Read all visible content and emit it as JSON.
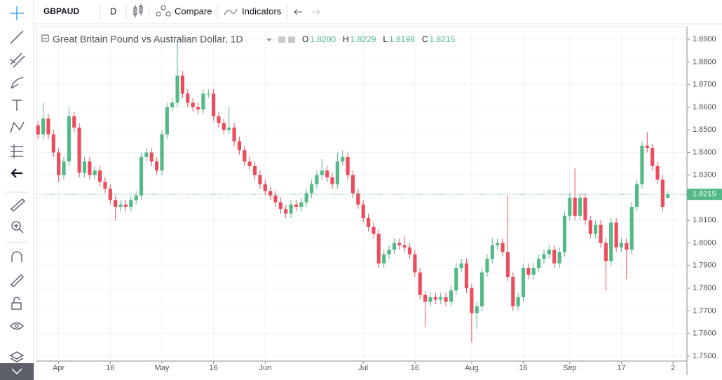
{
  "toolbar": {
    "symbol": "GBPAUD",
    "interval": "D",
    "compare": "Compare",
    "indicators": "Indicators"
  },
  "legend": {
    "title": "Great Britain Pound vs Australian Dollar, 1D",
    "items": [
      {
        "key": "O",
        "value": "1.8200"
      },
      {
        "key": "H",
        "value": "1.8229"
      },
      {
        "key": "L",
        "value": "1.8198"
      },
      {
        "key": "C",
        "value": "1.8215"
      }
    ]
  },
  "chart_data": {
    "type": "candlestick",
    "up_color": "#53b987",
    "down_color": "#eb4d5c",
    "grid": true,
    "open": [
      1.852,
      1.848,
      1.855,
      1.848,
      1.84,
      1.83,
      1.836,
      1.856,
      1.851,
      1.831,
      1.836,
      1.83,
      1.832,
      1.827,
      1.824,
      1.819,
      1.816,
      1.817,
      1.816,
      1.819,
      1.821,
      1.838,
      1.84,
      1.836,
      1.832,
      1.848,
      1.86,
      1.862,
      1.874,
      1.866,
      1.862,
      1.86,
      1.859,
      1.866,
      1.866,
      1.856,
      1.853,
      1.85,
      1.851,
      1.845,
      1.841,
      1.836,
      1.834,
      1.83,
      1.826,
      1.823,
      1.821,
      1.818,
      1.815,
      1.813,
      1.817,
      1.816,
      1.818,
      1.822,
      1.826,
      1.83,
      1.832,
      1.829,
      1.826,
      1.836,
      1.838,
      1.83,
      1.822,
      1.817,
      1.811,
      1.807,
      1.804,
      1.791,
      1.795,
      1.797,
      1.8,
      1.799,
      1.798,
      1.795,
      1.787,
      1.777,
      1.774,
      1.776,
      1.775,
      1.776,
      1.774,
      1.779,
      1.789,
      1.791,
      1.78,
      1.769,
      1.772,
      1.787,
      1.793,
      1.799,
      1.8,
      1.796,
      1.785,
      1.772,
      1.776,
      1.789,
      1.786,
      1.789,
      1.793,
      1.795,
      1.797,
      1.791,
      1.796,
      1.812,
      1.82,
      1.812,
      1.82,
      1.81,
      1.804,
      1.808,
      1.8,
      1.792,
      1.809,
      1.798,
      1.8,
      1.797,
      1.816,
      1.826,
      1.843,
      1.842,
      1.834,
      1.828,
      1.82
    ],
    "high": [
      1.854,
      1.862,
      1.857,
      1.85,
      1.842,
      1.838,
      1.86,
      1.858,
      1.853,
      1.838,
      1.838,
      1.834,
      1.834,
      1.829,
      1.826,
      1.821,
      1.819,
      1.819,
      1.821,
      1.823,
      1.84,
      1.842,
      1.842,
      1.838,
      1.85,
      1.862,
      1.864,
      1.889,
      1.876,
      1.868,
      1.864,
      1.862,
      1.868,
      1.868,
      1.868,
      1.858,
      1.855,
      1.86,
      1.853,
      1.847,
      1.843,
      1.838,
      1.836,
      1.832,
      1.828,
      1.825,
      1.823,
      1.82,
      1.817,
      1.819,
      1.819,
      1.82,
      1.824,
      1.828,
      1.832,
      1.837,
      1.834,
      1.831,
      1.84,
      1.841,
      1.84,
      1.832,
      1.824,
      1.819,
      1.813,
      1.809,
      1.806,
      1.797,
      1.799,
      1.802,
      1.802,
      1.803,
      1.8,
      1.797,
      1.789,
      1.779,
      1.778,
      1.778,
      1.778,
      1.778,
      1.781,
      1.791,
      1.793,
      1.793,
      1.782,
      1.774,
      1.789,
      1.795,
      1.802,
      1.802,
      1.802,
      1.821,
      1.787,
      1.778,
      1.791,
      1.791,
      1.791,
      1.795,
      1.797,
      1.799,
      1.799,
      1.798,
      1.814,
      1.822,
      1.833,
      1.822,
      1.822,
      1.812,
      1.81,
      1.81,
      1.802,
      1.811,
      1.811,
      1.802,
      1.802,
      1.818,
      1.828,
      1.845,
      1.849,
      1.844,
      1.836,
      1.83,
      1.8229
    ],
    "low": [
      1.846,
      1.846,
      1.846,
      1.838,
      1.827,
      1.828,
      1.834,
      1.849,
      1.829,
      1.829,
      1.828,
      1.828,
      1.825,
      1.822,
      1.817,
      1.81,
      1.814,
      1.814,
      1.814,
      1.817,
      1.819,
      1.836,
      1.834,
      1.83,
      1.83,
      1.846,
      1.858,
      1.86,
      1.864,
      1.86,
      1.858,
      1.857,
      1.857,
      1.864,
      1.854,
      1.851,
      1.848,
      1.848,
      1.843,
      1.839,
      1.834,
      1.832,
      1.828,
      1.824,
      1.821,
      1.819,
      1.816,
      1.813,
      1.811,
      1.811,
      1.814,
      1.814,
      1.816,
      1.82,
      1.824,
      1.828,
      1.827,
      1.824,
      1.824,
      1.834,
      1.828,
      1.82,
      1.815,
      1.809,
      1.805,
      1.802,
      1.789,
      1.789,
      1.793,
      1.795,
      1.797,
      1.796,
      1.793,
      1.785,
      1.775,
      1.763,
      1.772,
      1.773,
      1.773,
      1.772,
      1.772,
      1.777,
      1.787,
      1.778,
      1.756,
      1.762,
      1.77,
      1.785,
      1.791,
      1.797,
      1.794,
      1.783,
      1.77,
      1.77,
      1.774,
      1.784,
      1.784,
      1.787,
      1.791,
      1.793,
      1.789,
      1.789,
      1.794,
      1.81,
      1.81,
      1.81,
      1.808,
      1.802,
      1.802,
      1.798,
      1.779,
      1.79,
      1.796,
      1.796,
      1.784,
      1.795,
      1.814,
      1.824,
      1.84,
      1.832,
      1.826,
      1.814,
      1.8198
    ],
    "close": [
      1.848,
      1.855,
      1.848,
      1.84,
      1.83,
      1.836,
      1.856,
      1.851,
      1.831,
      1.836,
      1.83,
      1.832,
      1.827,
      1.824,
      1.819,
      1.816,
      1.817,
      1.816,
      1.819,
      1.821,
      1.838,
      1.84,
      1.836,
      1.832,
      1.848,
      1.86,
      1.862,
      1.874,
      1.866,
      1.862,
      1.86,
      1.859,
      1.866,
      1.866,
      1.856,
      1.853,
      1.85,
      1.851,
      1.845,
      1.841,
      1.836,
      1.834,
      1.83,
      1.826,
      1.823,
      1.821,
      1.818,
      1.815,
      1.813,
      1.817,
      1.816,
      1.818,
      1.822,
      1.826,
      1.83,
      1.832,
      1.829,
      1.826,
      1.836,
      1.838,
      1.83,
      1.822,
      1.817,
      1.811,
      1.807,
      1.804,
      1.791,
      1.795,
      1.797,
      1.8,
      1.799,
      1.798,
      1.795,
      1.787,
      1.777,
      1.774,
      1.776,
      1.775,
      1.776,
      1.774,
      1.779,
      1.789,
      1.791,
      1.78,
      1.769,
      1.772,
      1.787,
      1.793,
      1.799,
      1.8,
      1.796,
      1.785,
      1.772,
      1.776,
      1.789,
      1.786,
      1.789,
      1.793,
      1.795,
      1.797,
      1.791,
      1.796,
      1.812,
      1.82,
      1.812,
      1.82,
      1.81,
      1.804,
      1.808,
      1.8,
      1.792,
      1.809,
      1.798,
      1.8,
      1.797,
      1.816,
      1.826,
      1.843,
      1.842,
      1.834,
      1.828,
      1.816,
      1.8215
    ],
    "ylim": [
      1.7478,
      1.895
    ],
    "yticks": [
      {
        "value": 1.75,
        "label": "1.7500"
      },
      {
        "value": 1.76,
        "label": "1.7600"
      },
      {
        "value": 1.77,
        "label": "1.7700"
      },
      {
        "value": 1.78,
        "label": "1.7800"
      },
      {
        "value": 1.79,
        "label": "1.7900"
      },
      {
        "value": 1.8,
        "label": "1.8000"
      },
      {
        "value": 1.81,
        "label": "1.8100"
      },
      {
        "value": 1.82,
        "label": "1.8200"
      },
      {
        "value": 1.83,
        "label": "1.8300"
      },
      {
        "value": 1.84,
        "label": "1.8400"
      },
      {
        "value": 1.85,
        "label": "1.8500"
      },
      {
        "value": 1.86,
        "label": "1.8600"
      },
      {
        "value": 1.87,
        "label": "1.8700"
      },
      {
        "value": 1.88,
        "label": "1.8800"
      },
      {
        "value": 1.89,
        "label": "1.8900"
      }
    ],
    "xlim": [
      -0.3,
      125.7
    ],
    "xticks": [
      {
        "value": 4,
        "label": "Apr"
      },
      {
        "value": 14,
        "label": "16"
      },
      {
        "value": 24,
        "label": "May"
      },
      {
        "value": 34,
        "label": "16"
      },
      {
        "value": 44,
        "label": "Jun"
      },
      {
        "value": 63,
        "label": "Jul"
      },
      {
        "value": 73,
        "label": "16"
      },
      {
        "value": 84,
        "label": "Aug"
      },
      {
        "value": 94,
        "label": "16"
      },
      {
        "value": 103,
        "label": "Sep"
      },
      {
        "value": 113,
        "label": "17"
      },
      {
        "value": 123,
        "label": "2"
      }
    ],
    "last_price": 1.8215,
    "last_price_label": "1.8215"
  }
}
